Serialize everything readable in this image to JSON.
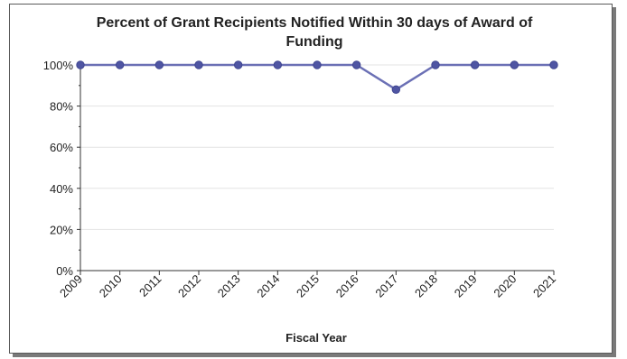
{
  "chart_data": {
    "type": "line",
    "title_line1": "Percent of Grant Recipients Notified Within 30 days of Award of",
    "title_line2": "Funding",
    "xlabel": "Fiscal Year",
    "ylabel": "",
    "categories": [
      "2009",
      "2010",
      "2011",
      "2012",
      "2013",
      "2014",
      "2015",
      "2016",
      "2017",
      "2018",
      "2019",
      "2020",
      "2021"
    ],
    "series": [
      {
        "values": [
          100,
          100,
          100,
          100,
          100,
          100,
          100,
          100,
          88,
          100,
          100,
          100,
          100
        ]
      }
    ],
    "ylim": [
      0,
      100
    ],
    "yticks": [
      {
        "value": 0,
        "label": "0%"
      },
      {
        "value": 20,
        "label": "20%"
      },
      {
        "value": 40,
        "label": "40%"
      },
      {
        "value": 60,
        "label": "60%"
      },
      {
        "value": 80,
        "label": "80%"
      },
      {
        "value": 100,
        "label": "100%"
      }
    ],
    "grid": true,
    "legend": "none",
    "line_color": "#6b70b5",
    "marker_color": "#4f55a3",
    "grid_color": "#e3e3e3"
  }
}
